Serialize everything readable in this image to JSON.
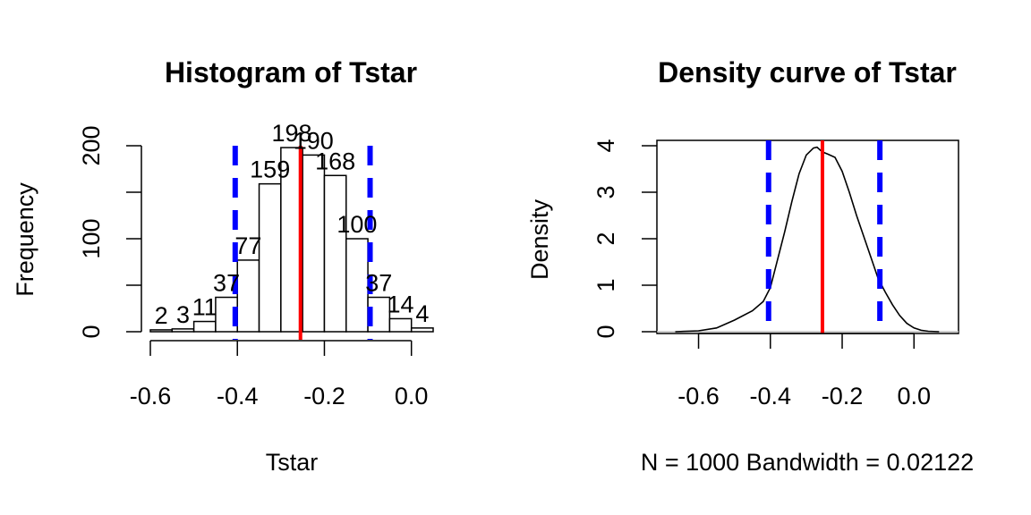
{
  "chart_data": [
    {
      "type": "bar",
      "title": "Histogram of Tstar",
      "xlabel": "Tstar",
      "ylabel": "Frequency",
      "bin_edges": [
        -0.6,
        -0.55,
        -0.5,
        -0.45,
        -0.4,
        -0.35,
        -0.3,
        -0.25,
        -0.2,
        -0.15,
        -0.1,
        -0.05,
        0.0,
        0.05
      ],
      "values": [
        2,
        3,
        11,
        37,
        77,
        159,
        198,
        190,
        168,
        100,
        37,
        14,
        4
      ],
      "value_labels": [
        "2",
        "3",
        "11",
        "37",
        "77",
        "159",
        "198",
        "190",
        "168",
        "100",
        "37",
        "14",
        "4"
      ],
      "xticks": [
        -0.6,
        -0.4,
        -0.2,
        0.0
      ],
      "xtick_labels": [
        "-0.6",
        "-0.4",
        "-0.2",
        "0.0"
      ],
      "yticks": [
        0,
        50,
        100,
        150,
        200
      ],
      "ytick_labels": [
        "0",
        "",
        "100",
        "",
        "200"
      ],
      "xlim": [
        -0.6,
        0.05
      ],
      "ylim": [
        0,
        200
      ],
      "vlines": [
        {
          "x": -0.255,
          "color": "#ff0000",
          "style": "solid"
        },
        {
          "x": -0.405,
          "color": "#0000ff",
          "style": "dashed"
        },
        {
          "x": -0.095,
          "color": "#0000ff",
          "style": "dashed"
        }
      ],
      "grid": false
    },
    {
      "type": "line",
      "title": "Density curve of Tstar",
      "xlabel": "N = 1000   Bandwidth = 0.02122",
      "ylabel": "Density",
      "x": [
        -0.665,
        -0.6,
        -0.55,
        -0.5,
        -0.45,
        -0.42,
        -0.4,
        -0.38,
        -0.36,
        -0.34,
        -0.32,
        -0.3,
        -0.28,
        -0.27,
        -0.26,
        -0.25,
        -0.24,
        -0.22,
        -0.2,
        -0.18,
        -0.16,
        -0.14,
        -0.12,
        -0.1,
        -0.09,
        -0.08,
        -0.06,
        -0.04,
        -0.02,
        0.0,
        0.02,
        0.04,
        0.07
      ],
      "y": [
        0.0,
        0.02,
        0.08,
        0.25,
        0.45,
        0.65,
        0.95,
        1.55,
        2.15,
        2.8,
        3.4,
        3.8,
        3.95,
        3.97,
        3.9,
        3.85,
        3.82,
        3.75,
        3.45,
        3.0,
        2.5,
        2.05,
        1.6,
        1.15,
        1.0,
        0.85,
        0.58,
        0.35,
        0.18,
        0.08,
        0.03,
        0.01,
        0.0
      ],
      "xticks": [
        -0.6,
        -0.4,
        -0.2,
        0.0
      ],
      "xtick_labels": [
        "-0.6",
        "-0.4",
        "-0.2",
        "0.0"
      ],
      "yticks": [
        0,
        1,
        2,
        3,
        4
      ],
      "ytick_labels": [
        "0",
        "1",
        "2",
        "3",
        "4"
      ],
      "xlim": [
        -0.716,
        0.124
      ],
      "ylim": [
        0,
        4.0
      ],
      "vlines": [
        {
          "x": -0.255,
          "color": "#ff0000",
          "style": "solid"
        },
        {
          "x": -0.405,
          "color": "#0000ff",
          "style": "dashed"
        },
        {
          "x": -0.095,
          "color": "#0000ff",
          "style": "dashed"
        }
      ],
      "baseline_color": "#bebebe",
      "grid": false
    }
  ]
}
